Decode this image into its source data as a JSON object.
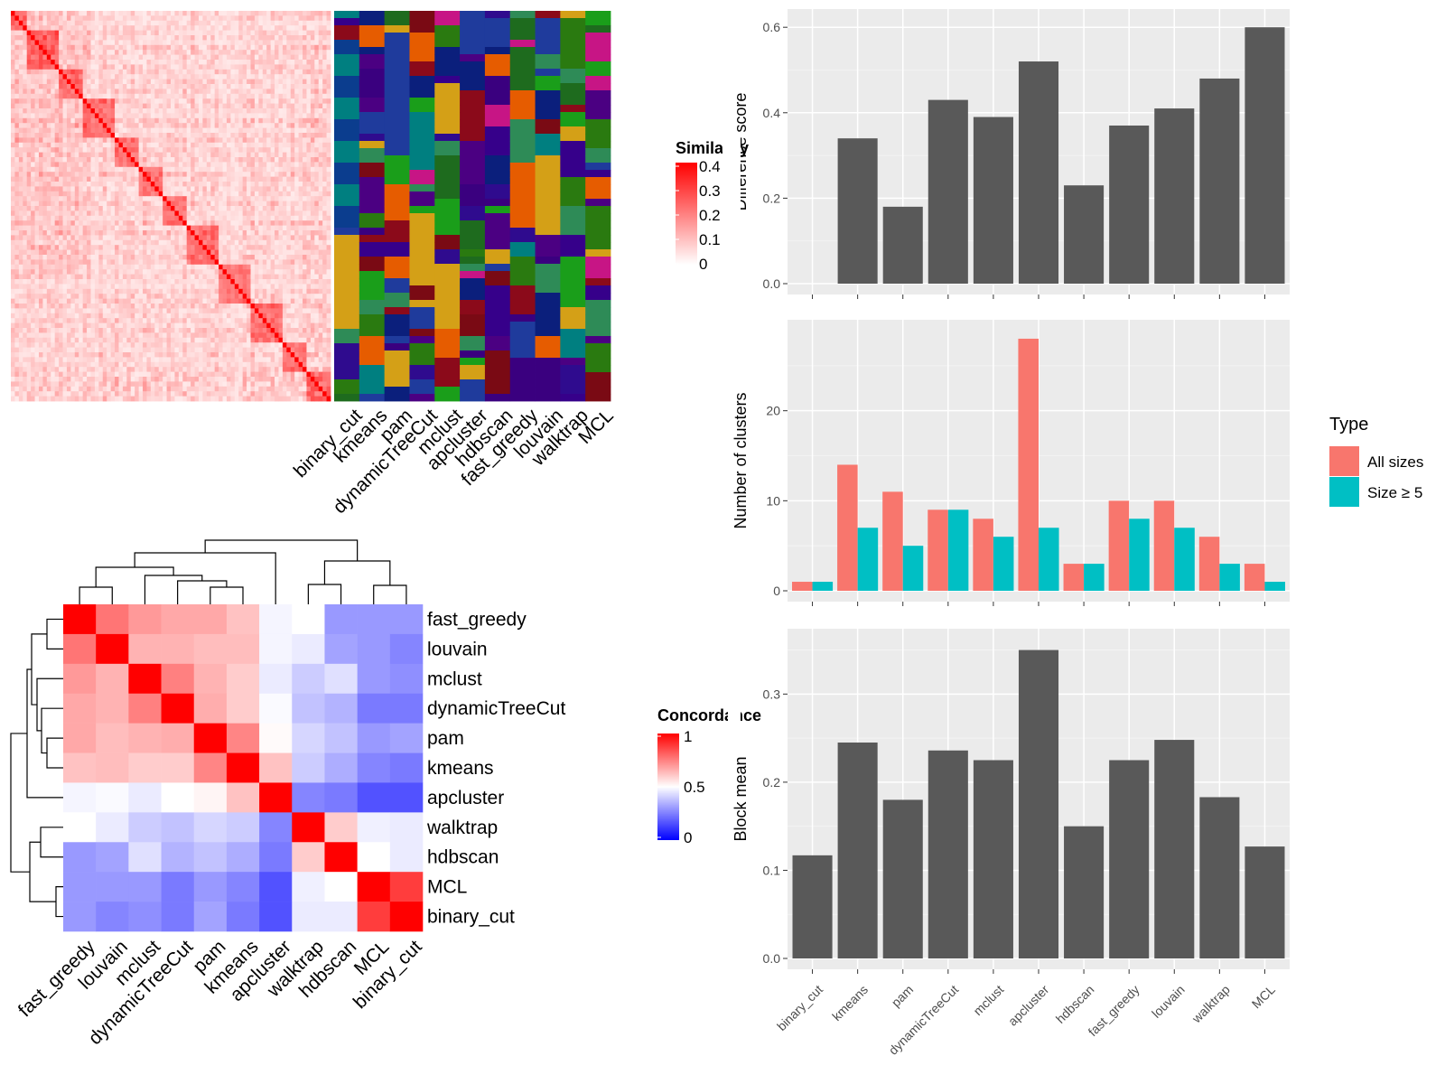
{
  "similarity_legend": {
    "title": "Similarity",
    "labels": [
      "0.4",
      "0.3",
      "0.2",
      "0.1",
      "0"
    ]
  },
  "concordance_legend": {
    "title": "Concordance",
    "labels": [
      "1",
      "0.5",
      "0"
    ]
  },
  "type_legend": {
    "title": "Type",
    "entries": [
      {
        "label": "All sizes",
        "color": "#F8766D"
      },
      {
        "label": "Size ≥ 5",
        "color": "#00BFC4"
      }
    ]
  },
  "colors": {
    "similarity_high": "#FF0000",
    "concordance_high": "#FF0000",
    "concordance_mid": "#FFFFFF",
    "concordance_low": "#0000FF",
    "bar_gray": "#595959",
    "panel_bg": "#EBEBEB",
    "cluster_teal": "#007F80"
  },
  "chart_data": [
    {
      "type": "heatmap",
      "name": "similarity matrix with cluster assignments",
      "annotation_columns": [
        "binary_cut",
        "kmeans",
        "pam",
        "dynamicTreeCut",
        "mclust",
        "apcluster",
        "hdbscan",
        "fast_greedy",
        "louvain",
        "walktrap",
        "MCL"
      ],
      "color_range": [
        0,
        0.4
      ]
    },
    {
      "type": "heatmap",
      "name": "method concordance",
      "rows": [
        "fast_greedy",
        "louvain",
        "mclust",
        "dynamicTreeCut",
        "pam",
        "kmeans",
        "apcluster",
        "walktrap",
        "hdbscan",
        "MCL",
        "binary_cut"
      ],
      "columns": [
        "fast_greedy",
        "louvain",
        "mclust",
        "dynamicTreeCut",
        "pam",
        "kmeans",
        "apcluster",
        "walktrap",
        "hdbscan",
        "MCL",
        "binary_cut"
      ],
      "values": [
        [
          1.0,
          0.77,
          0.7,
          0.67,
          0.67,
          0.62,
          0.48,
          0.5,
          0.3,
          0.3,
          0.3
        ],
        [
          0.77,
          1.0,
          0.65,
          0.65,
          0.63,
          0.63,
          0.48,
          0.46,
          0.32,
          0.3,
          0.26
        ],
        [
          0.7,
          0.65,
          1.0,
          0.75,
          0.65,
          0.6,
          0.46,
          0.4,
          0.44,
          0.3,
          0.28
        ],
        [
          0.67,
          0.65,
          0.75,
          1.0,
          0.66,
          0.6,
          0.49,
          0.38,
          0.35,
          0.24,
          0.24
        ],
        [
          0.67,
          0.63,
          0.65,
          0.66,
          1.0,
          0.74,
          0.51,
          0.42,
          0.38,
          0.3,
          0.32
        ],
        [
          0.62,
          0.63,
          0.6,
          0.6,
          0.74,
          1.0,
          0.62,
          0.4,
          0.34,
          0.26,
          0.24
        ],
        [
          0.48,
          0.49,
          0.46,
          0.5,
          0.52,
          0.62,
          1.0,
          0.26,
          0.24,
          0.16,
          0.16
        ],
        [
          0.5,
          0.46,
          0.4,
          0.38,
          0.42,
          0.4,
          0.26,
          1.0,
          0.6,
          0.47,
          0.46
        ],
        [
          0.3,
          0.32,
          0.44,
          0.35,
          0.38,
          0.34,
          0.24,
          0.6,
          1.0,
          0.5,
          0.46
        ],
        [
          0.3,
          0.3,
          0.3,
          0.24,
          0.3,
          0.26,
          0.16,
          0.47,
          0.5,
          1.0,
          0.88
        ],
        [
          0.3,
          0.26,
          0.28,
          0.24,
          0.32,
          0.24,
          0.16,
          0.46,
          0.46,
          0.88,
          1.0
        ]
      ],
      "color_range": [
        0,
        1
      ]
    },
    {
      "type": "bar",
      "name": "difference score",
      "categories": [
        "binary_cut",
        "kmeans",
        "pam",
        "dynamicTreeCut",
        "mclust",
        "apcluster",
        "hdbscan",
        "fast_greedy",
        "louvain",
        "walktrap",
        "MCL"
      ],
      "values": [
        0.0,
        0.34,
        0.18,
        0.43,
        0.39,
        0.52,
        0.23,
        0.37,
        0.41,
        0.48,
        0.6
      ],
      "ylabel": "Difference score",
      "ylim": [
        0,
        0.63
      ],
      "yticks": [
        "0.0",
        "0.2",
        "0.4",
        "0.6"
      ],
      "grid": true
    },
    {
      "type": "bar",
      "name": "number of clusters",
      "categories": [
        "binary_cut",
        "kmeans",
        "pam",
        "dynamicTreeCut",
        "mclust",
        "apcluster",
        "hdbscan",
        "fast_greedy",
        "louvain",
        "walktrap",
        "MCL"
      ],
      "series": [
        {
          "name": "All sizes",
          "values": [
            1,
            14,
            11,
            9,
            8,
            28,
            3,
            10,
            10,
            6,
            3
          ]
        },
        {
          "name": "Size ≥ 5",
          "values": [
            1,
            7,
            5,
            9,
            6,
            7,
            3,
            8,
            7,
            3,
            1
          ]
        }
      ],
      "ylabel": "Number of clusters",
      "ylim": [
        0,
        29.5
      ],
      "yticks": [
        "0",
        "10",
        "20"
      ],
      "legend": "right",
      "grid": true
    },
    {
      "type": "bar",
      "name": "block mean",
      "categories": [
        "binary_cut",
        "kmeans",
        "pam",
        "dynamicTreeCut",
        "mclust",
        "apcluster",
        "hdbscan",
        "fast_greedy",
        "louvain",
        "walktrap",
        "MCL"
      ],
      "values": [
        0.117,
        0.245,
        0.18,
        0.236,
        0.225,
        0.35,
        0.15,
        0.225,
        0.248,
        0.183,
        0.127
      ],
      "ylabel": "Block mean",
      "ylim": [
        0,
        0.368
      ],
      "yticks": [
        "0.0",
        "0.1",
        "0.2",
        "0.3"
      ],
      "grid": true
    }
  ]
}
